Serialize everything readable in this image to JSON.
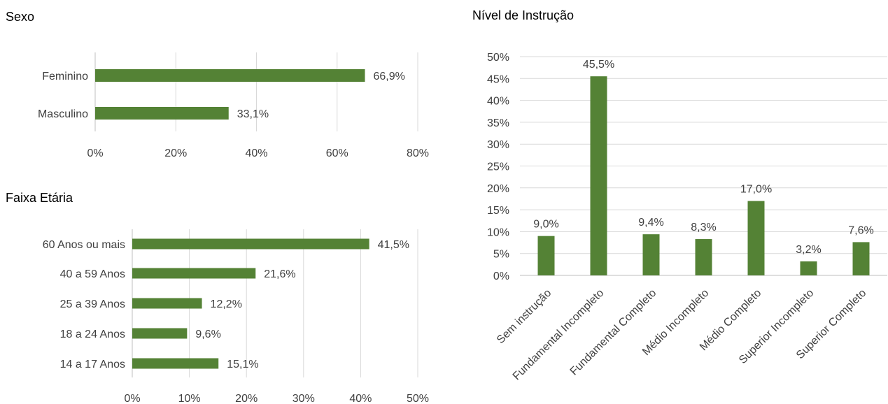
{
  "chart_data": [
    {
      "type": "bar",
      "orientation": "horizontal",
      "title": "Sexo",
      "categories": [
        "Feminino",
        "Masculino"
      ],
      "values": [
        66.9,
        33.1
      ],
      "data_labels": [
        "66,9%",
        "33,1%"
      ],
      "xlim": [
        0,
        80
      ],
      "ticks": [
        0,
        20,
        40,
        60,
        80
      ],
      "tick_labels": [
        "0%",
        "20%",
        "40%",
        "60%",
        "80%"
      ],
      "grid": "vertical",
      "color": "#548235"
    },
    {
      "type": "bar",
      "orientation": "horizontal",
      "title": "Faixa Etária",
      "categories": [
        "60 Anos ou mais",
        "40 a 59 Anos",
        "25 a 39 Anos",
        "18 a 24 Anos",
        "14 a 17 Anos"
      ],
      "values": [
        41.5,
        21.6,
        12.2,
        9.6,
        15.1
      ],
      "data_labels": [
        "41,5%",
        "21,6%",
        "12,2%",
        "9,6%",
        "15,1%"
      ],
      "xlim": [
        0,
        50
      ],
      "ticks": [
        0,
        10,
        20,
        30,
        40,
        50
      ],
      "tick_labels": [
        "0%",
        "10%",
        "20%",
        "30%",
        "40%",
        "50%"
      ],
      "grid": "vertical",
      "color": "#548235"
    },
    {
      "type": "bar",
      "orientation": "vertical",
      "title": "Nível de Instrução",
      "categories": [
        "Sem instrução",
        "Fundamental Incompleto",
        "Fundamental Completo",
        "Médio Incompleto",
        "Médio Completo",
        "Superior Incompleto",
        "Superior Completo"
      ],
      "values": [
        9.0,
        45.5,
        9.4,
        8.3,
        17.0,
        3.2,
        7.6
      ],
      "data_labels": [
        "9,0%",
        "45,5%",
        "9,4%",
        "8,3%",
        "17,0%",
        "3,2%",
        "7,6%"
      ],
      "ylim": [
        0,
        50
      ],
      "ticks": [
        0,
        5,
        10,
        15,
        20,
        25,
        30,
        35,
        40,
        45,
        50
      ],
      "tick_labels": [
        "0%",
        "5%",
        "10%",
        "15%",
        "20%",
        "25%",
        "30%",
        "35%",
        "40%",
        "45%",
        "50%"
      ],
      "grid": "horizontal",
      "color": "#548235"
    }
  ]
}
